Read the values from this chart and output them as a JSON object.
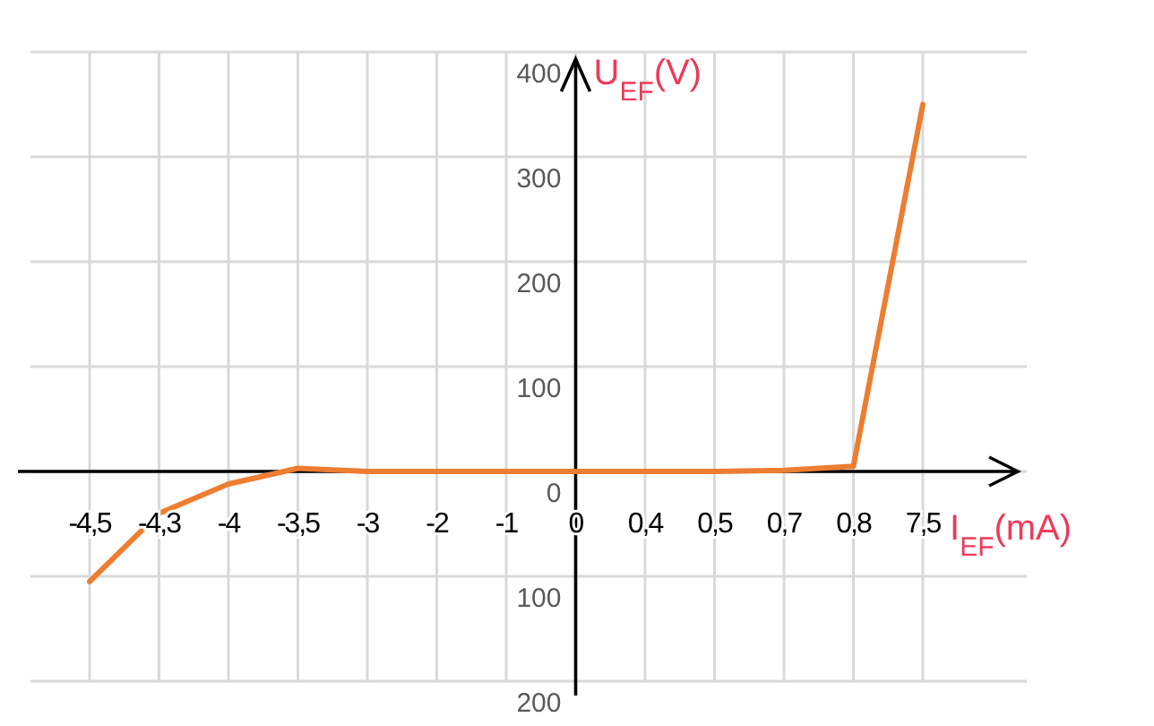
{
  "chart_data": {
    "type": "line",
    "xlabel": "I$_{EF}$(mA)",
    "ylabel": "U$_{EF}$(V)",
    "categories": [
      "-4,5",
      "-4,3",
      "-4",
      "-3,5",
      "-3",
      "-2",
      "-1",
      "0",
      "0,4",
      "0,5",
      "0,7",
      "0,8",
      "7,5"
    ],
    "series": [
      {
        "color": "#ed7d31",
        "values": [
          -105,
          -40,
          -12,
          3,
          0,
          0,
          0,
          0,
          0,
          0,
          1,
          5,
          350
        ]
      }
    ],
    "ylim": [
      -200,
      400
    ],
    "yticks": [
      {
        "value": -200,
        "label": "200"
      },
      {
        "value": -100,
        "label": "100"
      },
      0,
      100,
      200,
      300,
      400
    ],
    "grid": true,
    "marker": "none",
    "line_style": "solid"
  }
}
